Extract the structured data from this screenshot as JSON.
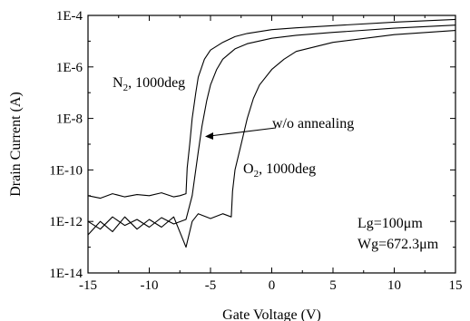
{
  "chart_data": {
    "type": "line",
    "xlabel": "Gate Voltage (V)",
    "ylabel": "Drain Current (A)",
    "xlim": [
      -15,
      15
    ],
    "ylim": [
      1e-14,
      0.0001
    ],
    "yscale": "log",
    "x_ticks": [
      -15,
      -10,
      -5,
      0,
      5,
      10,
      15
    ],
    "x_tick_labels": [
      "-15",
      "-10",
      "-5",
      "0",
      "5",
      "10",
      "15"
    ],
    "y_ticks": [
      1e-14,
      1e-12,
      1e-10,
      1e-08,
      1e-06,
      0.0001
    ],
    "y_tick_labels": [
      "1E-14",
      "1E-12",
      "1E-10",
      "1E-8",
      "1E-6",
      "1E-4"
    ],
    "grid": false,
    "legend": "none",
    "series": [
      {
        "name": "N2, 1000deg",
        "points": [
          [
            -15,
            1e-11
          ],
          [
            -14,
            8e-12
          ],
          [
            -13,
            1.2e-11
          ],
          [
            -12,
            9e-12
          ],
          [
            -11,
            1.1e-11
          ],
          [
            -10,
            1e-11
          ],
          [
            -9,
            1.3e-11
          ],
          [
            -8,
            9e-12
          ],
          [
            -7.5,
            1e-11
          ],
          [
            -7,
            1.2e-11
          ],
          [
            -6.9,
            1.2e-10
          ],
          [
            -6.7,
            1e-09
          ],
          [
            -6.5,
            1e-08
          ],
          [
            -6.2,
            1e-07
          ],
          [
            -6,
            4e-07
          ],
          [
            -5.5,
            2e-06
          ],
          [
            -5,
            4.5e-06
          ],
          [
            -4,
            9e-06
          ],
          [
            -3,
            1.5e-05
          ],
          [
            -2,
            2e-05
          ],
          [
            0,
            2.8e-05
          ],
          [
            2,
            3.3e-05
          ],
          [
            5,
            4e-05
          ],
          [
            10,
            5.5e-05
          ],
          [
            15,
            7e-05
          ]
        ]
      },
      {
        "name": "w/o annealing",
        "points": [
          [
            -15,
            1e-12
          ],
          [
            -14,
            5e-13
          ],
          [
            -13,
            1.5e-12
          ],
          [
            -12,
            7e-13
          ],
          [
            -11,
            1.2e-12
          ],
          [
            -10,
            6e-13
          ],
          [
            -9,
            1.4e-12
          ],
          [
            -8,
            8e-13
          ],
          [
            -7,
            1.2e-12
          ],
          [
            -6.5,
            1e-11
          ],
          [
            -6,
            5e-10
          ],
          [
            -5.7,
            5e-09
          ],
          [
            -5.3,
            5e-08
          ],
          [
            -5,
            2e-07
          ],
          [
            -4.5,
            8e-07
          ],
          [
            -4,
            2e-06
          ],
          [
            -3,
            5e-06
          ],
          [
            -2,
            8e-06
          ],
          [
            0,
            1.3e-05
          ],
          [
            2,
            1.7e-05
          ],
          [
            5,
            2.2e-05
          ],
          [
            10,
            3.2e-05
          ],
          [
            15,
            4.2e-05
          ]
        ]
      },
      {
        "name": "O2, 1000deg",
        "points": [
          [
            -15,
            3e-13
          ],
          [
            -14,
            1e-12
          ],
          [
            -13,
            4e-13
          ],
          [
            -12,
            1.5e-12
          ],
          [
            -11,
            5e-13
          ],
          [
            -10,
            1.2e-12
          ],
          [
            -9,
            6e-13
          ],
          [
            -8,
            1.5e-12
          ],
          [
            -7,
            1e-13
          ],
          [
            -6.5,
            1e-12
          ],
          [
            -6,
            2e-12
          ],
          [
            -5,
            1.3e-12
          ],
          [
            -4,
            2e-12
          ],
          [
            -3.3,
            1.5e-12
          ],
          [
            -3.2,
            1.5e-11
          ],
          [
            -3,
            1e-10
          ],
          [
            -2.5,
            1e-09
          ],
          [
            -2,
            1e-08
          ],
          [
            -1.5,
            6e-08
          ],
          [
            -1,
            2e-07
          ],
          [
            0,
            8e-07
          ],
          [
            1,
            2e-06
          ],
          [
            2,
            4e-06
          ],
          [
            5,
            9e-06
          ],
          [
            10,
            1.8e-05
          ],
          [
            15,
            2.6e-05
          ]
        ]
      }
    ],
    "annotations": {
      "n2_text": "N",
      "n2_sub": "2",
      "n2_rest": ", 1000deg",
      "o2_text": "O",
      "o2_sub": "2",
      "o2_rest": ", 1000deg",
      "wo_text": "w/o annealing",
      "lg": "Lg=100μm",
      "wg": "Wg=672.3μm"
    }
  }
}
